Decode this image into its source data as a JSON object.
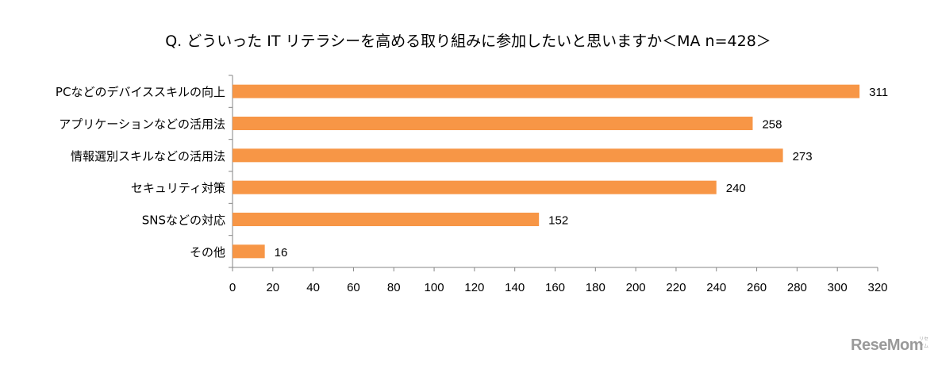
{
  "chart_data": {
    "type": "bar",
    "orientation": "horizontal",
    "title": "Q. どういった IT リテラシーを高める取り組みに参加したいと思いますか＜MA n=428＞",
    "categories": [
      "PCなどのデバイススキルの向上",
      "アプリケーションなどの活用法",
      "情報選別スキルなどの活用法",
      "セキュリティ対策",
      "SNSなどの対応",
      "その他"
    ],
    "values": [
      311,
      258,
      273,
      240,
      152,
      16
    ],
    "xlim": [
      0,
      320
    ],
    "xticks": [
      0,
      20,
      40,
      60,
      80,
      100,
      120,
      140,
      160,
      180,
      200,
      220,
      240,
      260,
      280,
      300,
      320
    ],
    "xlabel": "",
    "ylabel": "",
    "grid": false,
    "legend": "none",
    "colors": {
      "bar": "#F79646",
      "axis": "#868686",
      "text": "#000000"
    }
  },
  "watermark": {
    "main": "ReseMom",
    "small": "リセマム"
  }
}
